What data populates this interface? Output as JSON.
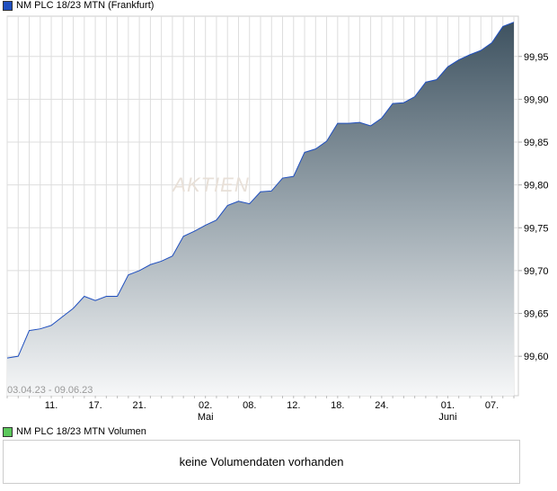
{
  "chart_data": {
    "type": "area",
    "title": "NM PLC 18/23 MTN (Frankfurt)",
    "series_color": "#1f4fbf",
    "legend_color": "#1f4fbf",
    "date_range": "03.04.23 - 09.06.23",
    "watermark": "AKTIEN",
    "ylim": [
      99.554,
      99.997
    ],
    "y_ticks": [
      99.6,
      99.65,
      99.7,
      99.75,
      99.8,
      99.85,
      99.9,
      99.95
    ],
    "y_tick_labels": [
      "99,60",
      "99,65",
      "99,70",
      "99,75",
      "99,80",
      "99,85",
      "99,90",
      "99,95"
    ],
    "x_dates": [
      "03.04",
      "04.04",
      "05.04",
      "06.04",
      "11.04",
      "12.04",
      "13.04",
      "14.04",
      "17.04",
      "18.04",
      "19.04",
      "20.04",
      "21.04",
      "24.04",
      "25.04",
      "26.04",
      "27.04",
      "28.04",
      "02.05",
      "03.05",
      "04.05",
      "05.05",
      "08.05",
      "09.05",
      "10.05",
      "11.05",
      "12.05",
      "15.05",
      "16.05",
      "17.05",
      "18.05",
      "19.05",
      "22.05",
      "23.05",
      "24.05",
      "25.05",
      "26.05",
      "29.05",
      "30.05",
      "31.05",
      "01.06",
      "02.06",
      "05.06",
      "06.06",
      "07.06",
      "08.06",
      "09.06"
    ],
    "values": [
      99.598,
      99.6,
      99.63,
      99.632,
      99.636,
      99.646,
      99.656,
      99.67,
      99.665,
      99.67,
      99.67,
      99.695,
      99.7,
      99.707,
      99.711,
      99.717,
      99.74,
      99.746,
      99.753,
      99.759,
      99.776,
      99.781,
      99.778,
      99.792,
      99.793,
      99.808,
      99.81,
      99.838,
      99.842,
      99.851,
      99.872,
      99.872,
      99.873,
      99.869,
      99.878,
      99.895,
      99.896,
      99.903,
      99.92,
      99.923,
      99.938,
      99.946,
      99.952,
      99.957,
      99.966,
      99.985,
      99.99
    ],
    "x_tick_labels": [
      {
        "index": 4,
        "label": "11.",
        "sub": ""
      },
      {
        "index": 8,
        "label": "17.",
        "sub": ""
      },
      {
        "index": 12,
        "label": "21.",
        "sub": ""
      },
      {
        "index": 18,
        "label": "02.",
        "sub": "Mai"
      },
      {
        "index": 22,
        "label": "08.",
        "sub": ""
      },
      {
        "index": 26,
        "label": "12.",
        "sub": ""
      },
      {
        "index": 30,
        "label": "18.",
        "sub": ""
      },
      {
        "index": 34,
        "label": "24.",
        "sub": ""
      },
      {
        "index": 40,
        "label": "01.",
        "sub": "Juni"
      },
      {
        "index": 44,
        "label": "07.",
        "sub": ""
      }
    ],
    "grid": true
  },
  "volume": {
    "title": "NM PLC 18/23 MTN Volumen",
    "legend_color": "#5cc85c",
    "message": "keine Volumendaten vorhanden"
  }
}
